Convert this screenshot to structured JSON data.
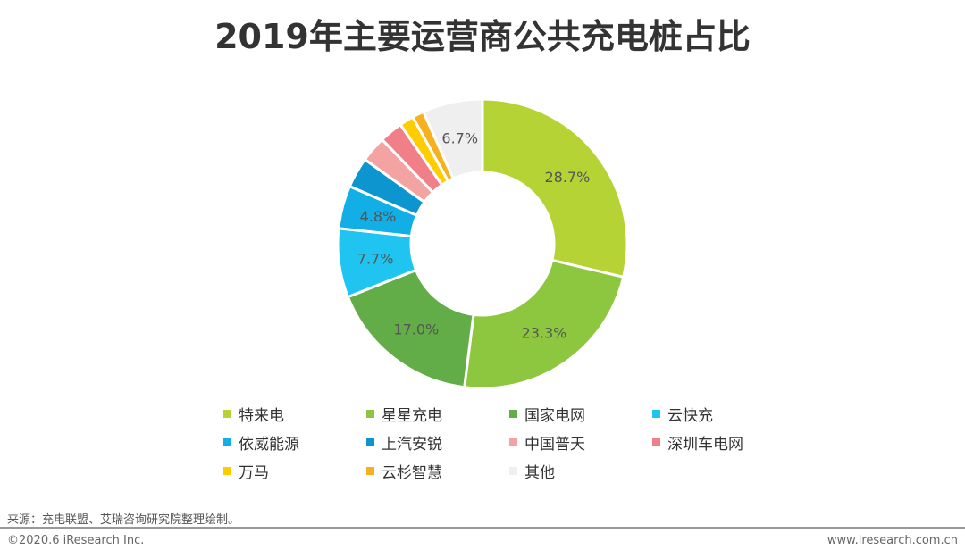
{
  "chart_data": {
    "type": "pie",
    "title": "2019年主要运营商公共充电桩占比",
    "donut": true,
    "categories": [
      "特来电",
      "星星充电",
      "国家电网",
      "云快充",
      "依威能源",
      "上汽安锐",
      "中国普天",
      "深圳车电网",
      "万马",
      "云杉智慧",
      "其他"
    ],
    "values": [
      28.7,
      23.3,
      17.0,
      7.7,
      4.8,
      3.4,
      2.9,
      2.6,
      1.6,
      1.3,
      6.7
    ],
    "labels": [
      "28.7%",
      "23.3%",
      "17.0%",
      "7.7%",
      "4.8%",
      "",
      "",
      "",
      "",
      "",
      "6.7%"
    ],
    "colors": [
      "#b5d334",
      "#8dc63f",
      "#62ad47",
      "#1fc5f0",
      "#12aee6",
      "#0c95cf",
      "#f4a3a3",
      "#f07f87",
      "#ffcc00",
      "#f7b01e",
      "#efefef"
    ],
    "legend": "bottom"
  },
  "footer": {
    "source": "来源：充电联盟、艾瑞咨询研究院整理绘制。",
    "copyright": "©2020.6 iResearch Inc.",
    "site": "www.iresearch.com.cn"
  }
}
